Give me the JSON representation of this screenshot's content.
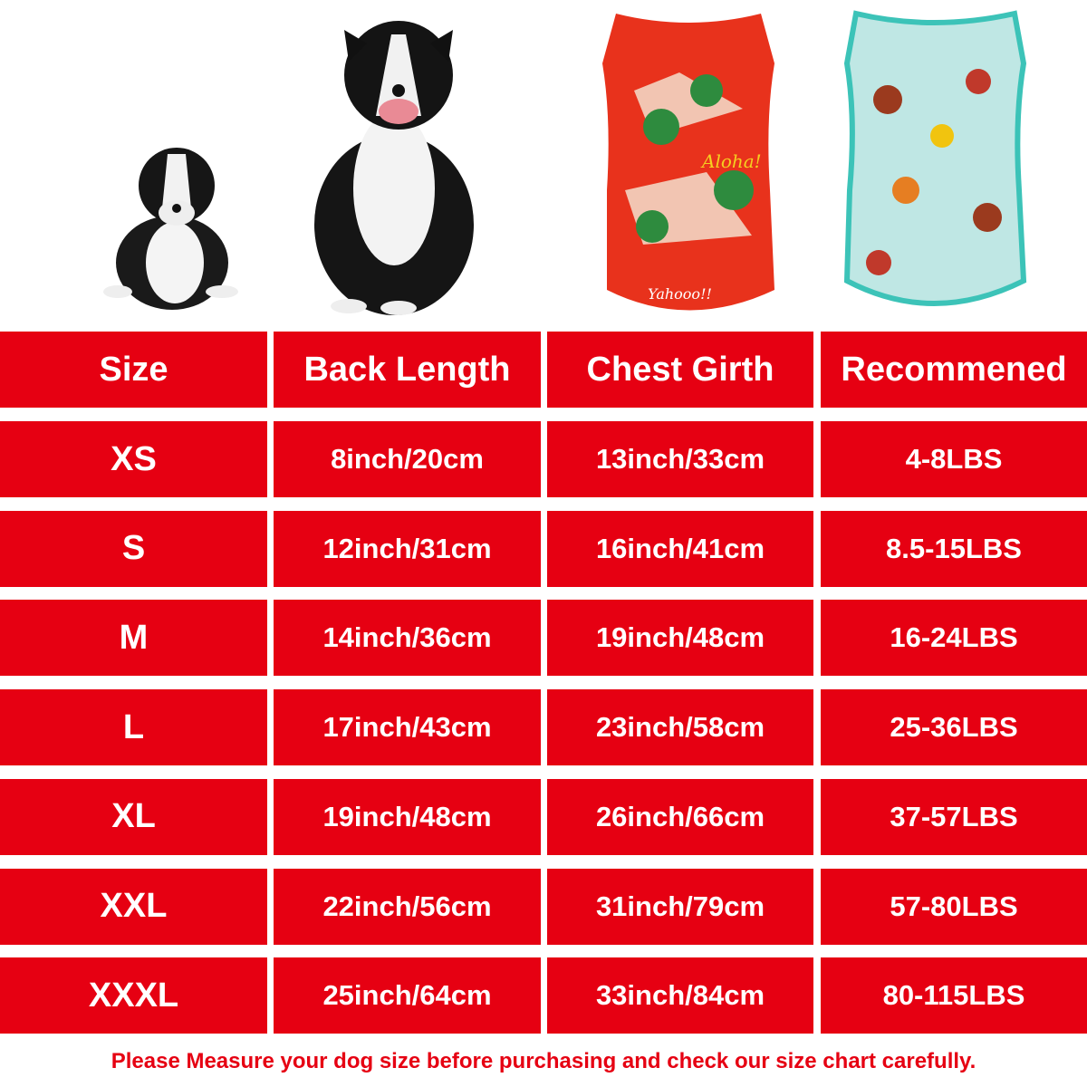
{
  "colors": {
    "accent": "#e60012",
    "text": "#ffffff"
  },
  "images": [
    {
      "name": "puppy-photo",
      "icon": "border-collie-puppy"
    },
    {
      "name": "adult-dog-photo",
      "icon": "border-collie-adult"
    },
    {
      "name": "red-hawaiian-shirt",
      "icon": "red-shirt",
      "print_text": [
        "Aloha!",
        "Yahooo!!"
      ]
    },
    {
      "name": "teal-hawaiian-shirt",
      "icon": "teal-shirt"
    }
  ],
  "table": {
    "headers": [
      "Size",
      "Back Length",
      "Chest Girth",
      "Recommened"
    ],
    "rows": [
      [
        "XS",
        "8inch/20cm",
        "13inch/33cm",
        "4-8LBS"
      ],
      [
        "S",
        "12inch/31cm",
        "16inch/41cm",
        "8.5-15LBS"
      ],
      [
        "M",
        "14inch/36cm",
        "19inch/48cm",
        "16-24LBS"
      ],
      [
        "L",
        "17inch/43cm",
        "23inch/58cm",
        "25-36LBS"
      ],
      [
        "XL",
        "19inch/48cm",
        "26inch/66cm",
        "37-57LBS"
      ],
      [
        "XXL",
        "22inch/56cm",
        "31inch/79cm",
        "57-80LBS"
      ],
      [
        "XXXL",
        "25inch/64cm",
        "33inch/84cm",
        "80-115LBS"
      ]
    ]
  },
  "note": "Please Measure your dog size before purchasing and check our size chart carefully."
}
